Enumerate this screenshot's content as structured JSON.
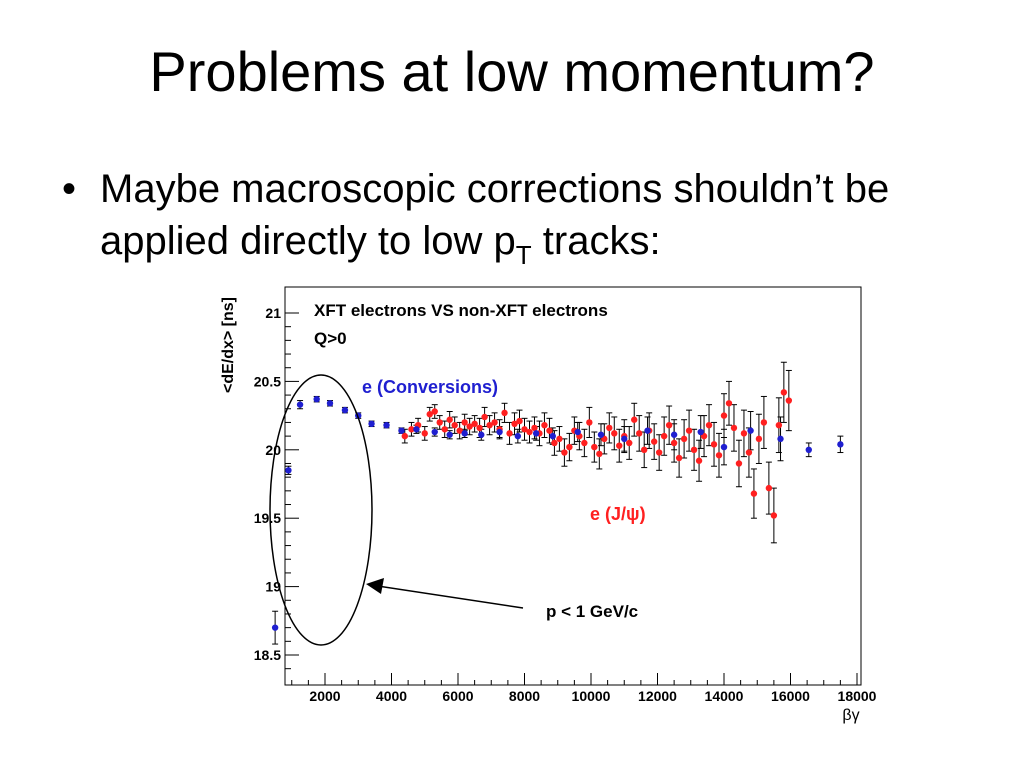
{
  "slide": {
    "title": "Problems at low momentum?",
    "bullet": {
      "marker": "•",
      "text_before": "Maybe macroscopic corrections shouldn’t be applied directly to low p",
      "subscript": "T",
      "text_after": " tracks:"
    }
  },
  "chart_data": {
    "type": "scatter",
    "title": "XFT electrons VS non-XFT electrons",
    "subtitle": "Q>0",
    "xlabel": "βγ",
    "ylabel": "<dE/dx> [ns]",
    "xlim": [
      0,
      18000
    ],
    "ylim": [
      18.35,
      21.15
    ],
    "xticks": [
      2000,
      4000,
      6000,
      8000,
      10000,
      12000,
      14000,
      16000,
      18000
    ],
    "yticks": [
      18.5,
      19,
      19.5,
      20,
      20.5,
      21
    ],
    "ytick_labels": [
      "18.5",
      "19",
      "19.5",
      "20",
      "20.5",
      "21"
    ],
    "grid": false,
    "legend": "inline labels",
    "annotations": [
      {
        "text": "p < 1 GeV/c",
        "arrow": true,
        "ellipse_around": "low-βγ conversion points"
      }
    ],
    "series": [
      {
        "name": "e (Conversions)",
        "color": "#1f1fd0",
        "x": [
          500,
          900,
          1250,
          1750,
          2150,
          2600,
          3000,
          3400,
          3850,
          4300,
          4750,
          5300,
          5750,
          6200,
          6700,
          7250,
          7800,
          8350,
          8850,
          9600,
          10300,
          11000,
          11700,
          12500,
          13300,
          14000,
          14800,
          15700,
          16550,
          17500
        ],
        "y": [
          18.7,
          19.85,
          20.33,
          20.37,
          20.34,
          20.29,
          20.25,
          20.19,
          20.18,
          20.14,
          20.15,
          20.13,
          20.11,
          20.12,
          20.11,
          20.13,
          20.1,
          20.12,
          20.1,
          20.13,
          20.11,
          20.08,
          20.14,
          20.11,
          20.13,
          20.02,
          20.14,
          20.08,
          20.0,
          20.04
        ],
        "err": [
          0.12,
          0.03,
          0.03,
          0.02,
          0.02,
          0.02,
          0.02,
          0.02,
          0.02,
          0.02,
          0.03,
          0.03,
          0.03,
          0.03,
          0.04,
          0.04,
          0.05,
          0.05,
          0.06,
          0.07,
          0.08,
          0.09,
          0.1,
          0.11,
          0.12,
          0.13,
          0.14,
          0.16,
          0.05,
          0.06
        ]
      },
      {
        "name": "e (J/ψ)",
        "color": "#ff2020",
        "x": [
          4400,
          4600,
          4800,
          5000,
          5150,
          5300,
          5450,
          5600,
          5750,
          5900,
          6050,
          6200,
          6350,
          6500,
          6650,
          6800,
          6950,
          7100,
          7250,
          7400,
          7550,
          7700,
          7850,
          8000,
          8150,
          8300,
          8450,
          8600,
          8750,
          8900,
          9050,
          9200,
          9350,
          9500,
          9650,
          9800,
          9950,
          10100,
          10250,
          10400,
          10550,
          10700,
          10850,
          11000,
          11150,
          11300,
          11450,
          11600,
          11750,
          11900,
          12050,
          12200,
          12350,
          12500,
          12650,
          12800,
          12950,
          13100,
          13250,
          13400,
          13550,
          13700,
          13850,
          14000,
          14150,
          14300,
          14450,
          14600,
          14750,
          14900,
          15050,
          15200,
          15350,
          15500,
          15650,
          15800,
          15950
        ],
        "y": [
          20.1,
          20.15,
          20.18,
          20.12,
          20.26,
          20.28,
          20.2,
          20.15,
          20.22,
          20.18,
          20.14,
          20.2,
          20.17,
          20.19,
          20.16,
          20.24,
          20.18,
          20.2,
          20.15,
          20.27,
          20.12,
          20.19,
          20.21,
          20.15,
          20.13,
          20.16,
          20.12,
          20.18,
          20.14,
          20.05,
          20.08,
          19.98,
          20.02,
          20.14,
          20.1,
          20.05,
          20.2,
          20.02,
          19.97,
          20.08,
          20.16,
          20.12,
          20.03,
          20.1,
          20.05,
          20.22,
          20.12,
          20.0,
          20.14,
          20.06,
          19.98,
          20.1,
          20.18,
          20.05,
          19.94,
          20.08,
          20.14,
          20.0,
          19.92,
          20.1,
          20.18,
          20.04,
          19.96,
          20.25,
          20.34,
          20.16,
          19.9,
          20.12,
          19.98,
          19.68,
          20.08,
          20.2,
          19.72,
          19.52,
          20.18,
          20.42,
          20.36
        ],
        "err": [
          0.05,
          0.05,
          0.05,
          0.05,
          0.05,
          0.05,
          0.05,
          0.06,
          0.06,
          0.06,
          0.06,
          0.06,
          0.06,
          0.06,
          0.07,
          0.07,
          0.07,
          0.07,
          0.07,
          0.07,
          0.08,
          0.08,
          0.08,
          0.08,
          0.08,
          0.08,
          0.09,
          0.09,
          0.09,
          0.09,
          0.09,
          0.1,
          0.1,
          0.1,
          0.1,
          0.1,
          0.11,
          0.11,
          0.11,
          0.11,
          0.11,
          0.12,
          0.12,
          0.12,
          0.12,
          0.12,
          0.13,
          0.13,
          0.13,
          0.13,
          0.13,
          0.14,
          0.14,
          0.14,
          0.14,
          0.14,
          0.15,
          0.15,
          0.15,
          0.15,
          0.15,
          0.16,
          0.16,
          0.16,
          0.16,
          0.17,
          0.17,
          0.17,
          0.18,
          0.18,
          0.18,
          0.19,
          0.19,
          0.2,
          0.2,
          0.22,
          0.22
        ]
      }
    ]
  }
}
